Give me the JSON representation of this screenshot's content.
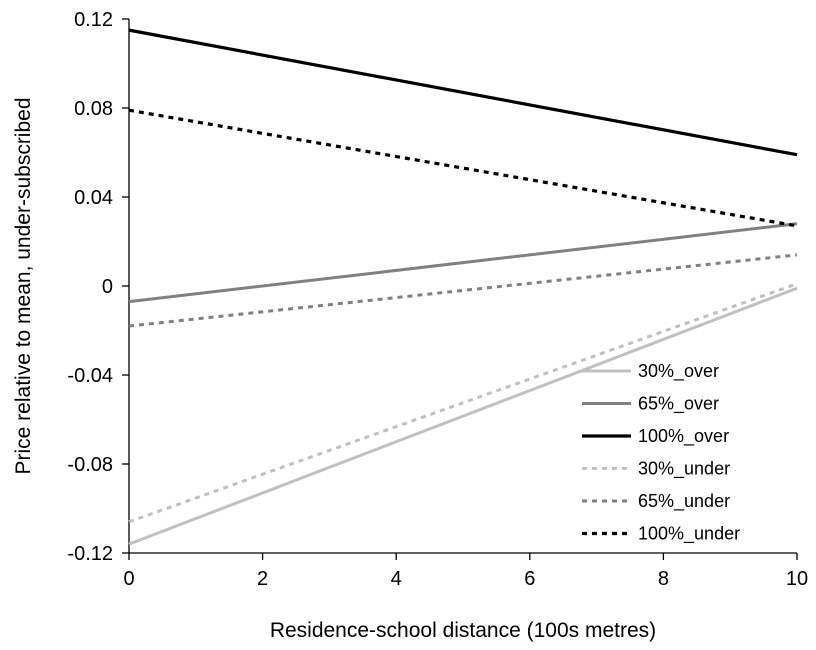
{
  "chart_data": {
    "type": "line",
    "xlabel": "Residence-school distance (100s metres)",
    "ylabel": "Price relative to mean, under-subscribed",
    "xlim": [
      0,
      10
    ],
    "ylim": [
      -0.12,
      0.12
    ],
    "x_ticks": [
      0,
      2,
      4,
      6,
      8,
      10
    ],
    "y_ticks": [
      0.12,
      0.08,
      0.04,
      0,
      -0.04,
      -0.08,
      -0.12
    ],
    "x_tick_labels": [
      "0",
      "2",
      "4",
      "6",
      "8",
      "10"
    ],
    "y_tick_labels": [
      "0.12",
      "0.08",
      "0.04",
      "0",
      "-0.04",
      "-0.08",
      "-0.12"
    ],
    "grid": false,
    "legend_position": "bottom-right",
    "series": [
      {
        "name": "30%_over",
        "color": "#c0c0c0",
        "style": "solid",
        "x": [
          0,
          10
        ],
        "y": [
          -0.116,
          -0.001
        ]
      },
      {
        "name": "65%_over",
        "color": "#808080",
        "style": "solid",
        "x": [
          0,
          10
        ],
        "y": [
          -0.007,
          0.028
        ]
      },
      {
        "name": "100%_over",
        "color": "#000000",
        "style": "solid",
        "x": [
          0,
          10
        ],
        "y": [
          0.115,
          0.059
        ]
      },
      {
        "name": "30%_under",
        "color": "#c0c0c0",
        "style": "dashed",
        "x": [
          0,
          10
        ],
        "y": [
          -0.106,
          0.001
        ]
      },
      {
        "name": "65%_under",
        "color": "#808080",
        "style": "dashed",
        "x": [
          0,
          10
        ],
        "y": [
          -0.018,
          0.014
        ]
      },
      {
        "name": "100%_under",
        "color": "#000000",
        "style": "dashed",
        "x": [
          0,
          10
        ],
        "y": [
          0.079,
          0.027
        ]
      }
    ]
  }
}
